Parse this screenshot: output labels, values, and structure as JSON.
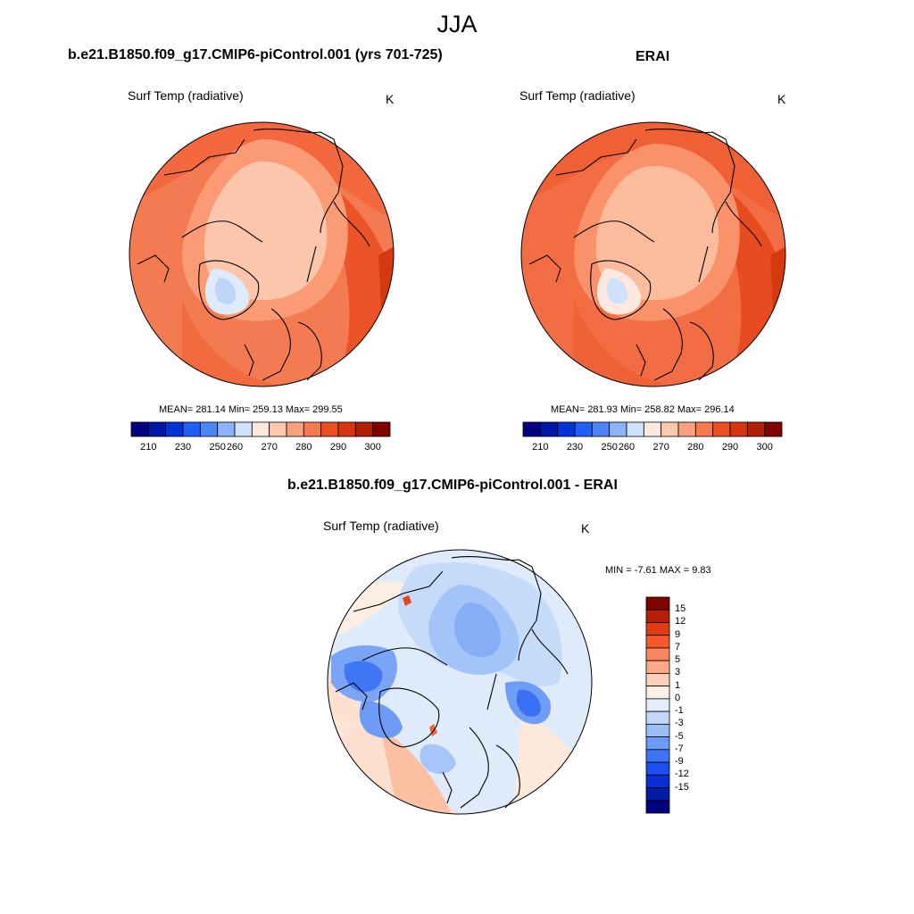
{
  "title": "JJA",
  "panels": [
    {
      "case_title": "b.e21.B1850.f09_g17.CMIP6-piControl.001 (yrs 701-725)",
      "variable": "Surf Temp (radiative)",
      "units": "K",
      "stats": "MEAN= 281.14  Min= 259.13  Max= 299.55",
      "colorbar": {
        "orientation": "horizontal",
        "colors": [
          "#00007f",
          "#0016a8",
          "#0034d8",
          "#1f5ef7",
          "#4a86f8",
          "#8db2f9",
          "#cfe2fb",
          "#fde8de",
          "#fcc9ae",
          "#fba07e",
          "#f87850",
          "#ee4d22",
          "#d6360e",
          "#b01e05",
          "#810000"
        ],
        "ticks": [
          "210",
          "230",
          "250",
          "260",
          "270",
          "280",
          "290",
          "300"
        ]
      }
    },
    {
      "case_title": "ERAI",
      "variable": "Surf Temp (radiative)",
      "units": "K",
      "stats": "MEAN= 281.93  Min= 258.82  Max= 296.14",
      "colorbar": {
        "orientation": "horizontal",
        "colors": [
          "#00007f",
          "#0016a8",
          "#0034d8",
          "#1f5ef7",
          "#4a86f8",
          "#8db2f9",
          "#cfe2fb",
          "#fde8de",
          "#fcc9ae",
          "#fba07e",
          "#f87850",
          "#ee4d22",
          "#d6360e",
          "#b01e05",
          "#810000"
        ],
        "ticks": [
          "210",
          "230",
          "250",
          "260",
          "270",
          "280",
          "290",
          "300"
        ]
      }
    },
    {
      "case_title": "b.e21.B1850.f09_g17.CMIP6-piControl.001 - ERAI",
      "variable": "Surf Temp (radiative)",
      "units": "K",
      "stats": "MIN =  -7.61 MAX =   9.83",
      "colorbar": {
        "orientation": "vertical",
        "colors": [
          "#810000",
          "#b51f05",
          "#e03c10",
          "#f65a2c",
          "#f9855d",
          "#fbaa88",
          "#fdd0b8",
          "#fdf0e6",
          "#e4eefb",
          "#c3d8f9",
          "#9cbef8",
          "#6c9cf7",
          "#3d74f5",
          "#1c4ef3",
          "#0a2fd6",
          "#001ca8",
          "#00007f"
        ],
        "ticks": [
          "15",
          "12",
          "9",
          "7",
          "5",
          "3",
          "1",
          "0",
          "-1",
          "-3",
          "-5",
          "-7",
          "-9",
          "-12",
          "-15"
        ]
      }
    }
  ]
}
